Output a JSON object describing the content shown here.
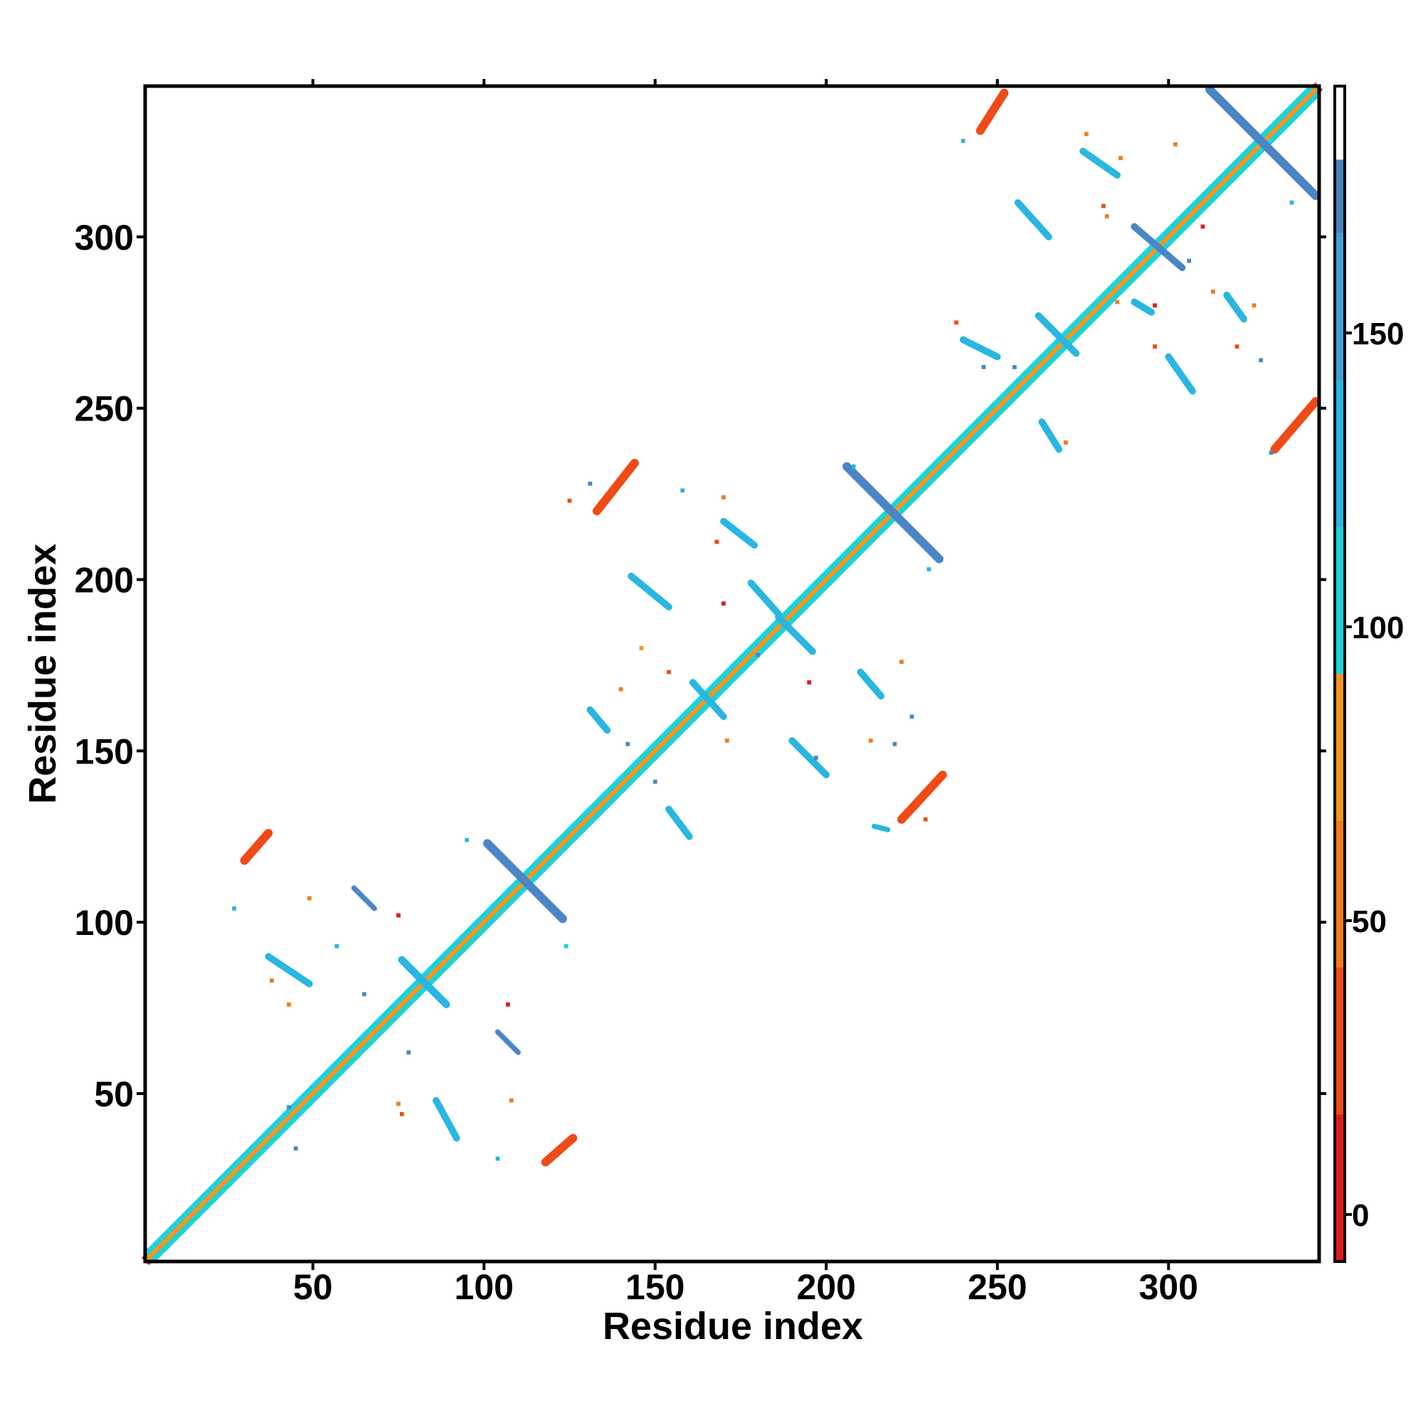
{
  "chart_data": {
    "type": "heatmap",
    "title": "",
    "xlabel": "Residue index",
    "ylabel": "Residue index",
    "xlim": [
      1,
      344
    ],
    "ylim": [
      1,
      344
    ],
    "x_ticks": [
      50,
      100,
      150,
      200,
      250,
      300
    ],
    "y_ticks": [
      50,
      100,
      150,
      200,
      250,
      300
    ],
    "colorbar": {
      "range": [
        -8,
        192
      ],
      "ticks": [
        0,
        50,
        100,
        150
      ],
      "segments": [
        {
          "from": -8,
          "to": 17,
          "color": "#e31a1c"
        },
        {
          "from": 17,
          "to": 42,
          "color": "#f04a16"
        },
        {
          "from": 42,
          "to": 67,
          "color": "#f37b1b"
        },
        {
          "from": 67,
          "to": 92,
          "color": "#f7941d"
        },
        {
          "from": 92,
          "to": 117,
          "color": "#19d3de"
        },
        {
          "from": 117,
          "to": 142,
          "color": "#29b6e0"
        },
        {
          "from": 142,
          "to": 167,
          "color": "#3ea0d8"
        },
        {
          "from": 167,
          "to": 179.5,
          "color": "#4a82c0"
        },
        {
          "from": 179.5,
          "to": 192,
          "color": "#ffffff"
        }
      ]
    },
    "colors": {
      "diagonal_red": "#e31a1c",
      "diagonal_orange": "#f7941d",
      "cyan": "#19d3de",
      "light_blue": "#29b6e0",
      "steel_blue": "#4a86c5",
      "red_orange": "#f04a16"
    },
    "diagonal_bands": [
      {
        "offset": 0,
        "width": 3,
        "color": "#e31a1c"
      },
      {
        "offset": 1,
        "width": 2,
        "color": "#f7941d"
      },
      {
        "offset": -1,
        "width": 2,
        "color": "#f7941d"
      },
      {
        "offset": 2,
        "width": 1.5,
        "color": "#19d3de"
      },
      {
        "offset": -2,
        "width": 1.5,
        "color": "#19d3de"
      }
    ],
    "contact_segments": [
      {
        "x1": 30,
        "y1": 118,
        "x2": 37,
        "y2": 126,
        "color": "#f04a16",
        "width": 2.5
      },
      {
        "x1": 118,
        "y1": 30,
        "x2": 126,
        "y2": 37,
        "color": "#f04a16",
        "width": 2.5
      },
      {
        "x1": 101,
        "y1": 123,
        "x2": 123,
        "y2": 101,
        "color": "#4a86c5",
        "width": 2.5
      },
      {
        "x1": 76,
        "y1": 89,
        "x2": 89,
        "y2": 76,
        "color": "#29b6e0",
        "width": 2.2
      },
      {
        "x1": 37,
        "y1": 90,
        "x2": 49,
        "y2": 82,
        "color": "#29b6e0",
        "width": 2
      },
      {
        "x1": 62,
        "y1": 110,
        "x2": 68,
        "y2": 104,
        "color": "#4a86c5",
        "width": 1.5
      },
      {
        "x1": 86,
        "y1": 48,
        "x2": 92,
        "y2": 37,
        "color": "#29b6e0",
        "width": 2
      },
      {
        "x1": 104,
        "y1": 68,
        "x2": 110,
        "y2": 62,
        "color": "#4a86c5",
        "width": 1.5
      },
      {
        "x1": 131,
        "y1": 162,
        "x2": 136,
        "y2": 156,
        "color": "#29b6e0",
        "width": 2
      },
      {
        "x1": 143,
        "y1": 201,
        "x2": 154,
        "y2": 192,
        "color": "#29b6e0",
        "width": 2
      },
      {
        "x1": 154,
        "y1": 133,
        "x2": 160,
        "y2": 125,
        "color": "#29b6e0",
        "width": 2
      },
      {
        "x1": 161,
        "y1": 170,
        "x2": 170,
        "y2": 160,
        "color": "#29b6e0",
        "width": 2
      },
      {
        "x1": 170,
        "y1": 217,
        "x2": 179,
        "y2": 210,
        "color": "#29b6e0",
        "width": 2
      },
      {
        "x1": 178,
        "y1": 199,
        "x2": 186,
        "y2": 190,
        "color": "#29b6e0",
        "width": 2
      },
      {
        "x1": 186,
        "y1": 189,
        "x2": 196,
        "y2": 179,
        "color": "#29b6e0",
        "width": 2
      },
      {
        "x1": 190,
        "y1": 153,
        "x2": 200,
        "y2": 143,
        "color": "#29b6e0",
        "width": 2
      },
      {
        "x1": 210,
        "y1": 173,
        "x2": 216,
        "y2": 166,
        "color": "#29b6e0",
        "width": 2
      },
      {
        "x1": 206,
        "y1": 233,
        "x2": 233,
        "y2": 206,
        "color": "#4a86c5",
        "width": 2.5
      },
      {
        "x1": 133,
        "y1": 220,
        "x2": 144,
        "y2": 234,
        "color": "#f04a16",
        "width": 2.5
      },
      {
        "x1": 222,
        "y1": 130,
        "x2": 234,
        "y2": 143,
        "color": "#f04a16",
        "width": 2.5
      },
      {
        "x1": 214,
        "y1": 128,
        "x2": 218,
        "y2": 127,
        "color": "#29b6e0",
        "width": 1.5
      },
      {
        "x1": 240,
        "y1": 270,
        "x2": 250,
        "y2": 265,
        "color": "#29b6e0",
        "width": 2
      },
      {
        "x1": 263,
        "y1": 246,
        "x2": 268,
        "y2": 238,
        "color": "#29b6e0",
        "width": 2
      },
      {
        "x1": 262,
        "y1": 277,
        "x2": 273,
        "y2": 266,
        "color": "#29b6e0",
        "width": 2
      },
      {
        "x1": 256,
        "y1": 310,
        "x2": 265,
        "y2": 300,
        "color": "#29b6e0",
        "width": 2
      },
      {
        "x1": 290,
        "y1": 303,
        "x2": 304,
        "y2": 291,
        "color": "#4a86c5",
        "width": 2
      },
      {
        "x1": 290,
        "y1": 281,
        "x2": 295,
        "y2": 278,
        "color": "#29b6e0",
        "width": 2
      },
      {
        "x1": 300,
        "y1": 265,
        "x2": 307,
        "y2": 255,
        "color": "#29b6e0",
        "width": 2
      },
      {
        "x1": 275,
        "y1": 325,
        "x2": 285,
        "y2": 318,
        "color": "#29b6e0",
        "width": 2
      },
      {
        "x1": 317,
        "y1": 283,
        "x2": 322,
        "y2": 276,
        "color": "#29b6e0",
        "width": 2
      },
      {
        "x1": 312,
        "y1": 343,
        "x2": 343,
        "y2": 312,
        "color": "#4a86c5",
        "width": 2.5
      },
      {
        "x1": 245,
        "y1": 331,
        "x2": 252,
        "y2": 342,
        "color": "#f04a16",
        "width": 2.5
      },
      {
        "x1": 331,
        "y1": 238,
        "x2": 343,
        "y2": 252,
        "color": "#f04a16",
        "width": 2.5
      }
    ],
    "scatter_dots": [
      [
        27,
        104,
        "#29b6e0"
      ],
      [
        49,
        107,
        "#f37b1b"
      ],
      [
        75,
        102,
        "#e31a1c"
      ],
      [
        57,
        93,
        "#29b6e0"
      ],
      [
        38,
        83,
        "#f37b1b"
      ],
      [
        43,
        76,
        "#f37b1b"
      ],
      [
        65,
        79,
        "#4a86c5"
      ],
      [
        78,
        62,
        "#4a86c5"
      ],
      [
        75,
        47,
        "#f37b1b"
      ],
      [
        76,
        44,
        "#f04a16"
      ],
      [
        43,
        46,
        "#4a86c5"
      ],
      [
        45,
        34,
        "#4a86c5"
      ],
      [
        104,
        31,
        "#29b6e0"
      ],
      [
        107,
        76,
        "#e31a1c"
      ],
      [
        108,
        48,
        "#f37b1b"
      ],
      [
        95,
        124,
        "#29b6e0"
      ],
      [
        124,
        93,
        "#19d3de"
      ],
      [
        140,
        168,
        "#f37b1b"
      ],
      [
        146,
        180,
        "#f7941d"
      ],
      [
        142,
        152,
        "#4a86c5"
      ],
      [
        150,
        141,
        "#4a86c5"
      ],
      [
        154,
        173,
        "#f04a16"
      ],
      [
        158,
        226,
        "#29b6e0"
      ],
      [
        170,
        224,
        "#f37b1b"
      ],
      [
        168,
        211,
        "#f04a16"
      ],
      [
        170,
        193,
        "#e31a1c"
      ],
      [
        171,
        153,
        "#f37b1b"
      ],
      [
        180,
        178,
        "#4a86c5"
      ],
      [
        195,
        170,
        "#e31a1c"
      ],
      [
        197,
        148,
        "#4a86c5"
      ],
      [
        213,
        153,
        "#f37b1b"
      ],
      [
        220,
        152,
        "#4a86c5"
      ],
      [
        222,
        176,
        "#f37b1b"
      ],
      [
        225,
        160,
        "#4a86c5"
      ],
      [
        229,
        130,
        "#f04a16"
      ],
      [
        131,
        228,
        "#4a86c5"
      ],
      [
        125,
        223,
        "#f04a16"
      ],
      [
        208,
        233,
        "#29b6e0"
      ],
      [
        230,
        203,
        "#29b6e0"
      ],
      [
        238,
        275,
        "#f04a16"
      ],
      [
        246,
        262,
        "#4a86c5"
      ],
      [
        240,
        328,
        "#29b6e0"
      ],
      [
        255,
        262,
        "#4a86c5"
      ],
      [
        270,
        240,
        "#f37b1b"
      ],
      [
        276,
        330,
        "#f37b1b"
      ],
      [
        281,
        309,
        "#f04a16"
      ],
      [
        282,
        306,
        "#f37b1b"
      ],
      [
        285,
        281,
        "#f37b1b"
      ],
      [
        296,
        268,
        "#f04a16"
      ],
      [
        302,
        327,
        "#f37b1b"
      ],
      [
        306,
        293,
        "#4a86c5"
      ],
      [
        310,
        303,
        "#e31a1c"
      ],
      [
        313,
        284,
        "#f37b1b"
      ],
      [
        320,
        268,
        "#f04a16"
      ],
      [
        325,
        280,
        "#f37b1b"
      ],
      [
        327,
        264,
        "#4a86c5"
      ],
      [
        336,
        310,
        "#29b6e0"
      ],
      [
        330,
        237,
        "#4a86c5"
      ],
      [
        296,
        280,
        "#e31a1c"
      ],
      [
        286,
        323,
        "#f37b1b"
      ]
    ]
  }
}
